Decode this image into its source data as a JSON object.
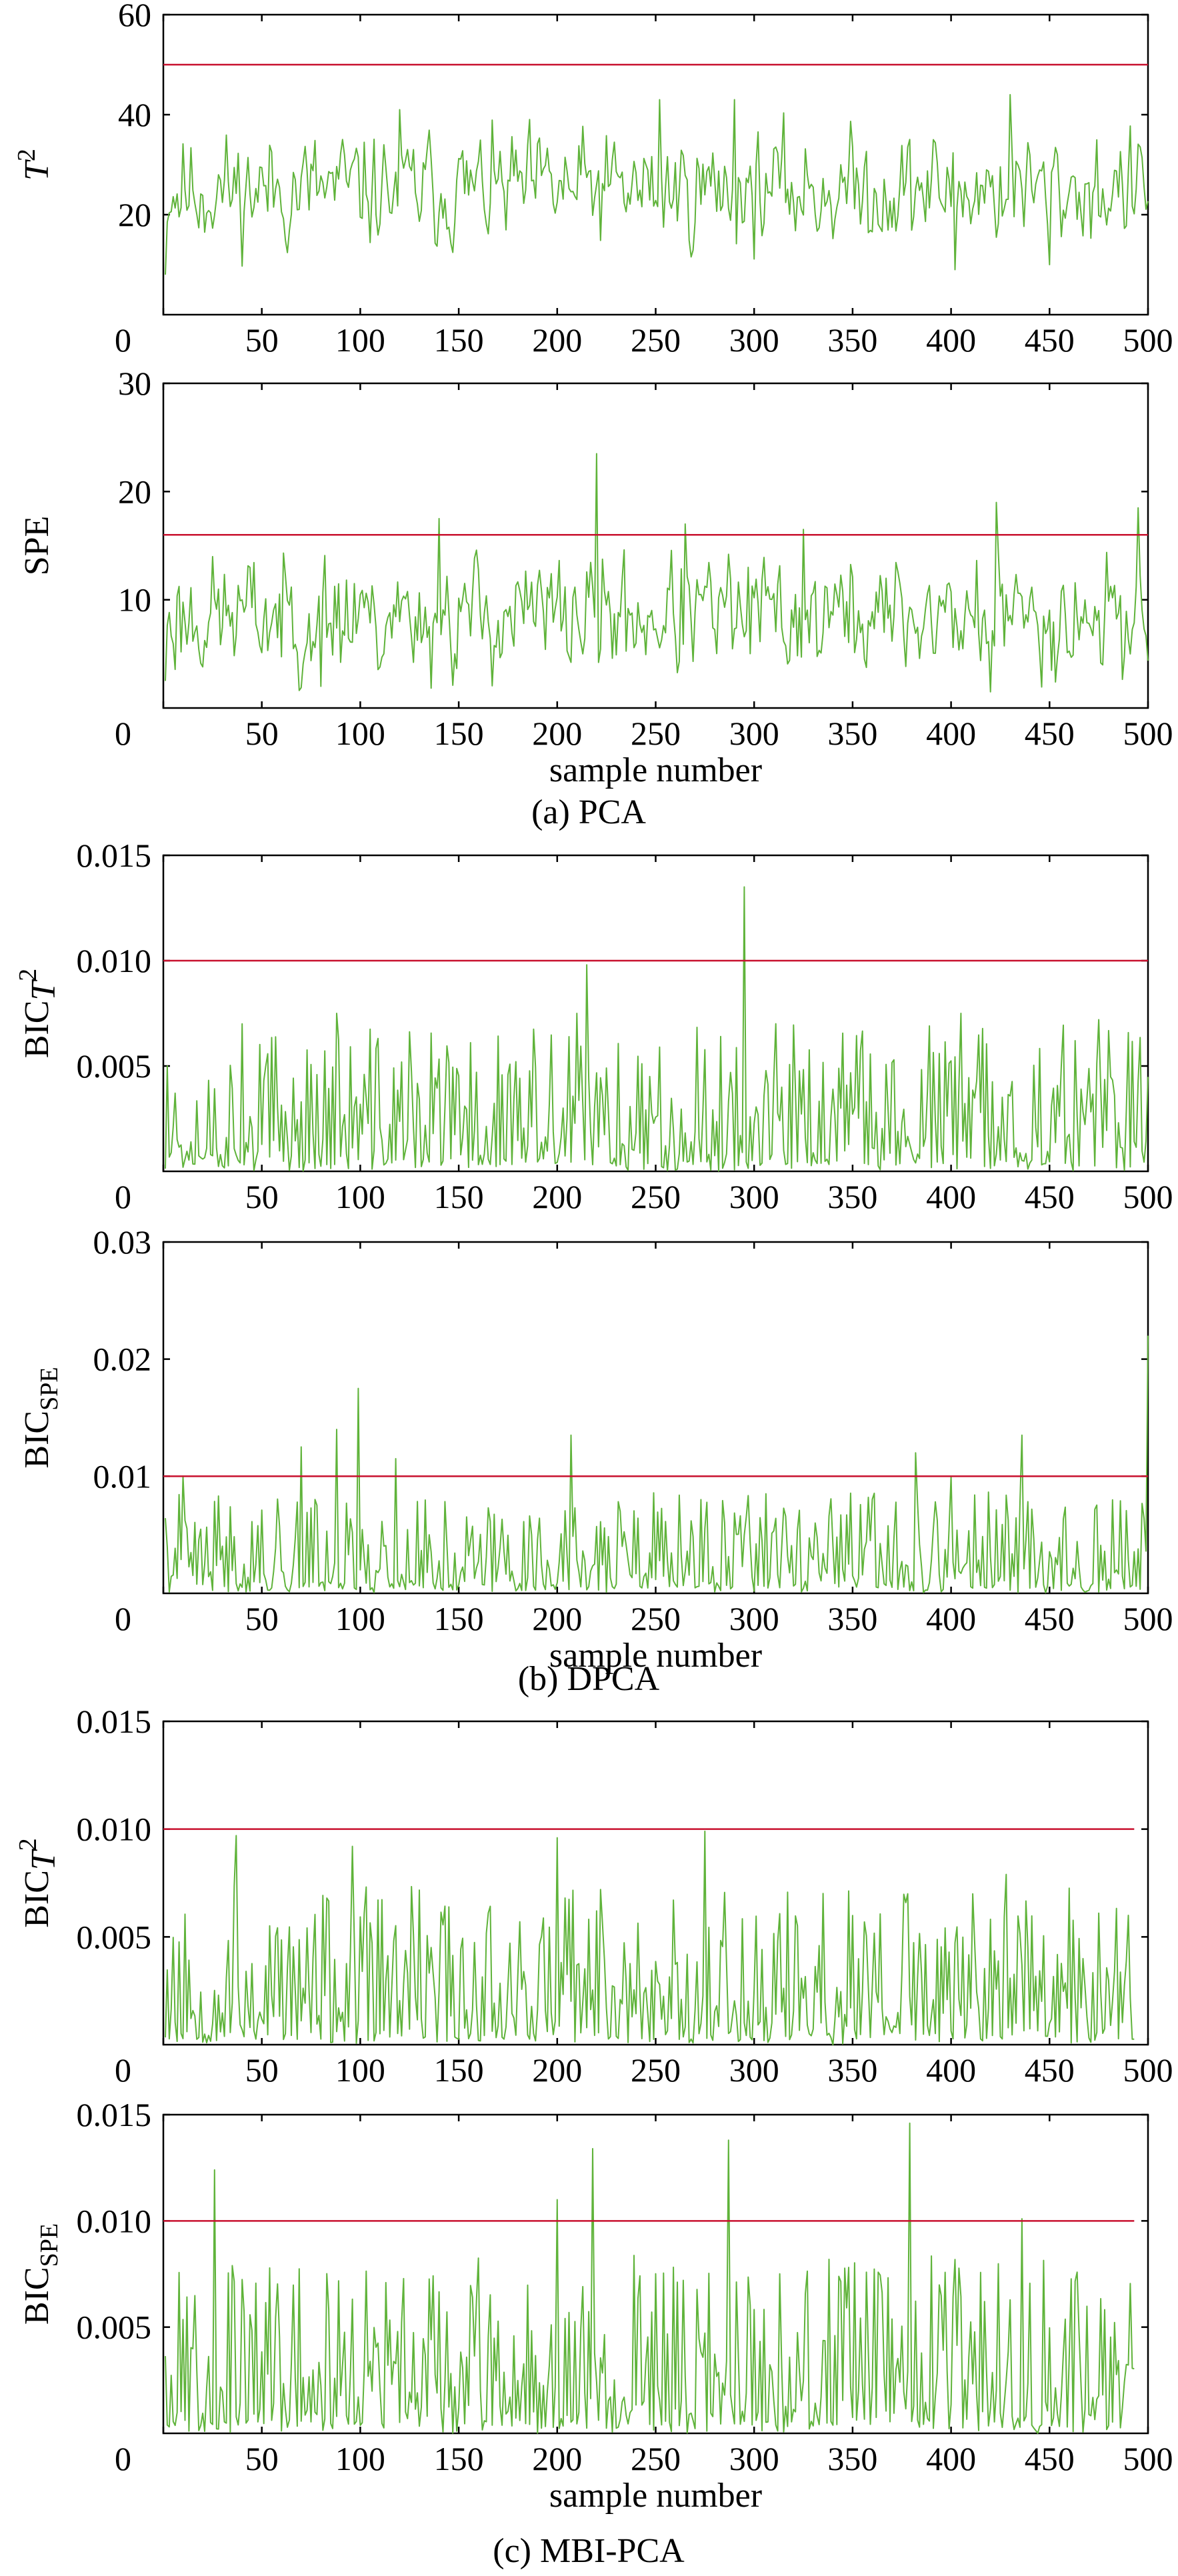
{
  "colors": {
    "series": "#5fb33a",
    "limit": "#c8102e",
    "axis": "#000000"
  },
  "captions": [
    "(a) PCA",
    "(b) DPCA",
    "(c) MBI-PCA"
  ],
  "chart_data": [
    {
      "type": "line",
      "group": "(a) PCA",
      "ylabel_main": "T",
      "ylabel_sup": "2",
      "ylabel_sub": "",
      "xlabel": "",
      "xlim": [
        0,
        500
      ],
      "ylim": [
        0,
        60
      ],
      "x_ticks": [
        "0",
        "50",
        "100",
        "150",
        "200",
        "250",
        "300",
        "350",
        "400",
        "450",
        "500"
      ],
      "y_ticks": [
        {
          "value": 20,
          "label": "20"
        },
        {
          "value": 40,
          "label": "40"
        },
        {
          "value": 60,
          "label": "60"
        }
      ],
      "limit": 50,
      "x_end": 500,
      "series": {
        "seed": 11,
        "mean": 25,
        "spread": 6.5,
        "low": 8,
        "high": 45,
        "peaks": [
          [
            1,
            8
          ],
          [
            120,
            41
          ],
          [
            252,
            43
          ],
          [
            290,
            43
          ],
          [
            402,
            9
          ],
          [
            430,
            44
          ],
          [
            450,
            10
          ]
        ]
      }
    },
    {
      "type": "line",
      "group": "(a) PCA",
      "ylabel_main": "SPE",
      "ylabel_sup": "",
      "ylabel_sub": "",
      "xlabel": "sample number",
      "xlim": [
        0,
        500
      ],
      "ylim": [
        0,
        30
      ],
      "x_ticks": [
        "0",
        "50",
        "100",
        "150",
        "200",
        "250",
        "300",
        "350",
        "400",
        "450",
        "500"
      ],
      "y_ticks": [
        {
          "value": 10,
          "label": "10"
        },
        {
          "value": 20,
          "label": "20"
        },
        {
          "value": 30,
          "label": "30"
        }
      ],
      "limit": 16,
      "x_end": 500,
      "series": {
        "seed": 23,
        "mean": 8.5,
        "spread": 3.2,
        "low": 1.5,
        "high": 17,
        "peaks": [
          [
            1,
            2.5
          ],
          [
            80,
            2
          ],
          [
            220,
            23.5
          ],
          [
            140,
            17.5
          ],
          [
            265,
            17
          ],
          [
            325,
            16.5
          ],
          [
            420,
            1.5
          ],
          [
            423,
            19
          ],
          [
            495,
            18.5
          ]
        ]
      }
    },
    {
      "type": "line",
      "group": "(b) DPCA",
      "ylabel_main": "BIC",
      "ylabel_sup": "",
      "ylabel_sub": "T2",
      "xlabel": "",
      "xlim": [
        0,
        500
      ],
      "ylim": [
        0,
        0.015
      ],
      "x_ticks": [
        "0",
        "50",
        "100",
        "150",
        "200",
        "250",
        "300",
        "350",
        "400",
        "450",
        "500"
      ],
      "y_ticks": [
        {
          "value": 0.005,
          "label": "0.005"
        },
        {
          "value": 0.01,
          "label": "0.010"
        },
        {
          "value": 0.015,
          "label": "0.015"
        }
      ],
      "limit": 0.01,
      "x_end": 500,
      "series": {
        "seed": 37,
        "mean": 0.0018,
        "spread": 0.0014,
        "low": 0,
        "high": 0.0075,
        "spiky": true,
        "peaks": [
          [
            2,
            0.005
          ],
          [
            40,
            0.007
          ],
          [
            88,
            0.0075
          ],
          [
            210,
            0.0075
          ],
          [
            215,
            0.0098
          ],
          [
            295,
            0.0135
          ],
          [
            405,
            0.0075
          ],
          [
            475,
            0.0072
          ]
        ]
      }
    },
    {
      "type": "line",
      "group": "(b) DPCA",
      "ylabel_main": "BIC",
      "ylabel_sup": "",
      "ylabel_sub": "SPE",
      "xlabel": "sample number",
      "xlim": [
        0,
        500
      ],
      "ylim": [
        0,
        0.03
      ],
      "x_ticks": [
        "0",
        "50",
        "100",
        "150",
        "200",
        "250",
        "300",
        "350",
        "400",
        "450",
        "500"
      ],
      "y_ticks": [
        {
          "value": 0.01,
          "label": "0.01"
        },
        {
          "value": 0.02,
          "label": "0.02"
        },
        {
          "value": 0.03,
          "label": "0.03"
        }
      ],
      "limit": 0.01,
      "x_end": 500,
      "series": {
        "seed": 41,
        "mean": 0.0022,
        "spread": 0.002,
        "low": 0,
        "high": 0.009,
        "spiky": true,
        "peaks": [
          [
            10,
            0.01
          ],
          [
            70,
            0.0125
          ],
          [
            88,
            0.014
          ],
          [
            99,
            0.0175
          ],
          [
            118,
            0.0115
          ],
          [
            207,
            0.0135
          ],
          [
            382,
            0.012
          ],
          [
            400,
            0.01
          ],
          [
            436,
            0.0135
          ],
          [
            500,
            0.022
          ]
        ]
      }
    },
    {
      "type": "line",
      "group": "(c) MBI-PCA",
      "ylabel_main": "BIC",
      "ylabel_sup": "",
      "ylabel_sub": "T2",
      "xlabel": "",
      "xlim": [
        0,
        500
      ],
      "ylim": [
        0,
        0.015
      ],
      "x_ticks": [
        "0",
        "50",
        "100",
        "150",
        "200",
        "250",
        "300",
        "350",
        "400",
        "450",
        "500"
      ],
      "y_ticks": [
        {
          "value": 0.005,
          "label": "0.005"
        },
        {
          "value": 0.01,
          "label": "0.010"
        },
        {
          "value": 0.015,
          "label": "0.015"
        }
      ],
      "limit": 0.01,
      "x_end": 493,
      "series": {
        "seed": 53,
        "mean": 0.0025,
        "spread": 0.0015,
        "low": 0,
        "high": 0.008,
        "spiky": true,
        "peaks": [
          [
            37,
            0.0097
          ],
          [
            96,
            0.0092
          ],
          [
            200,
            0.0096
          ],
          [
            275,
            0.0099
          ],
          [
            340,
            0
          ],
          [
            378,
            0.007
          ],
          [
            428,
            0.0079
          ],
          [
            490,
            0.006
          ]
        ]
      }
    },
    {
      "type": "line",
      "group": "(c) MBI-PCA",
      "ylabel_main": "BIC",
      "ylabel_sup": "",
      "ylabel_sub": "SPE",
      "xlabel": "sample number",
      "xlim": [
        0,
        500
      ],
      "ylim": [
        0,
        0.015
      ],
      "x_ticks": [
        "0",
        "50",
        "100",
        "150",
        "200",
        "250",
        "300",
        "350",
        "400",
        "450",
        "500"
      ],
      "y_ticks": [
        {
          "value": 0.005,
          "label": "0.005"
        },
        {
          "value": 0.01,
          "label": "0.010"
        },
        {
          "value": 0.015,
          "label": "0.015"
        }
      ],
      "limit": 0.01,
      "x_end": 493,
      "series": {
        "seed": 67,
        "mean": 0.0033,
        "spread": 0.0018,
        "low": 0,
        "high": 0.0088,
        "spiky": true,
        "peaks": [
          [
            26,
            0.0124
          ],
          [
            200,
            0.011
          ],
          [
            218,
            0.0134
          ],
          [
            287,
            0.0138
          ],
          [
            379,
            0.0146
          ],
          [
            436,
            0.0101
          ]
        ]
      }
    }
  ]
}
